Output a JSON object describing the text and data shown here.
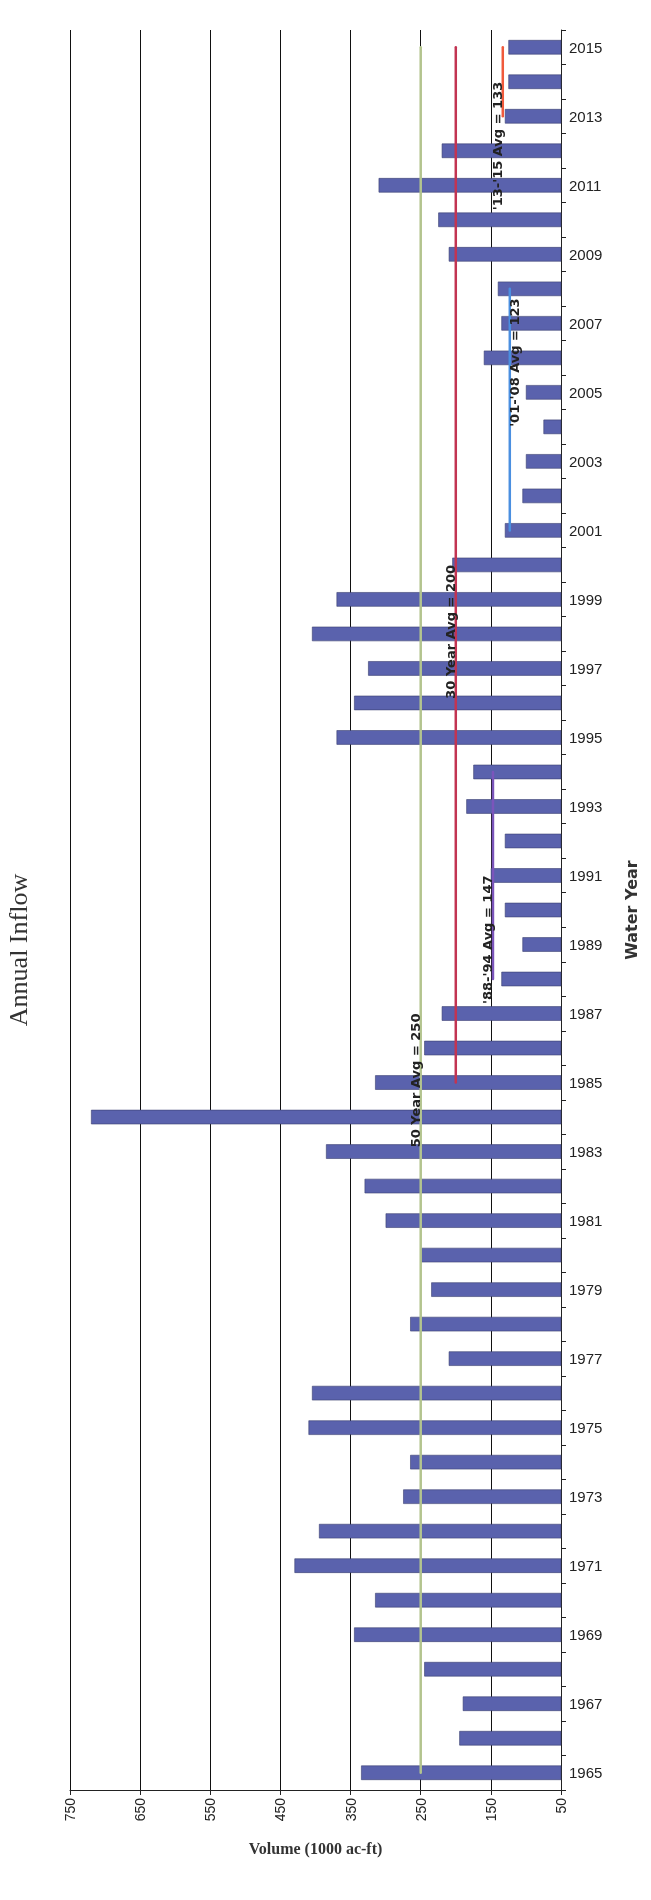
{
  "chart_data": {
    "type": "bar",
    "orientation": "horizontal",
    "title": "Annual Inflow",
    "xlabel": "Volume (1000 ac-ft)",
    "ylabel": "Water Year",
    "categories": [
      "2015",
      null,
      "2013",
      null,
      "2011",
      null,
      "2009",
      null,
      "2007",
      null,
      "2005",
      null,
      "2003",
      null,
      "2001",
      null,
      "1999",
      null,
      "1997",
      null,
      "1995",
      null,
      "1993",
      null,
      "1991",
      null,
      "1989",
      null,
      "1987",
      null,
      "1985",
      null,
      "1983",
      null,
      "1981",
      null,
      "1979",
      null,
      "1977",
      null,
      "1975",
      null,
      "1973",
      null,
      "1971",
      null,
      "1969",
      null,
      "1967",
      null,
      "1965"
    ],
    "xlim": [
      750,
      50
    ],
    "xticks": [
      750,
      650,
      550,
      450,
      350,
      250,
      150,
      50
    ],
    "grid": "x",
    "legend": false,
    "marker": "none",
    "line_style": "solid",
    "series": [
      {
        "color": "#5a62ad",
        "values": [
          125,
          125,
          130,
          220,
          310,
          225,
          210,
          140,
          135,
          160,
          100,
          75,
          100,
          105,
          130,
          205,
          370,
          405,
          325,
          345,
          370,
          175,
          185,
          130,
          150,
          130,
          105,
          135,
          220,
          245,
          315,
          720,
          385,
          330,
          300,
          250,
          235,
          265,
          210,
          405,
          410,
          265,
          275,
          395,
          430,
          315,
          345,
          245,
          190,
          195,
          335
        ]
      },
      {
        "type": "line",
        "name": "50 Year Avg = 250",
        "color": "#b3c48e",
        "values": [
          250,
          250,
          250,
          250,
          250,
          250,
          250,
          250,
          250,
          250,
          250,
          250,
          250,
          250,
          250,
          250,
          250,
          250,
          250,
          250,
          250,
          250,
          250,
          250,
          250,
          250,
          250,
          250,
          250,
          250,
          250,
          250,
          250,
          250,
          250,
          250,
          250,
          250,
          250,
          250,
          250,
          250,
          250,
          250,
          250,
          250,
          250,
          250,
          250,
          250,
          250
        ]
      },
      {
        "type": "line",
        "name": "30 Year Avg = 200",
        "color": "#c23452",
        "values": [
          200,
          200,
          200,
          200,
          200,
          200,
          200,
          200,
          200,
          200,
          200,
          200,
          200,
          200,
          200,
          200,
          200,
          200,
          200,
          200,
          200,
          200,
          200,
          200,
          200,
          200,
          200,
          200,
          200,
          200,
          200,
          null,
          null,
          null,
          null,
          null,
          null,
          null,
          null,
          null,
          null,
          null,
          null,
          null,
          null,
          null,
          null,
          null,
          null,
          null,
          null
        ]
      },
      {
        "type": "line",
        "name": "'88-'94 Avg = 147",
        "color": "#7b55bb",
        "values": [
          null,
          null,
          null,
          null,
          null,
          null,
          null,
          null,
          null,
          null,
          null,
          null,
          null,
          null,
          null,
          null,
          null,
          null,
          null,
          null,
          null,
          147,
          147,
          147,
          147,
          147,
          147,
          147,
          null,
          null,
          null,
          null,
          null,
          null,
          null,
          null,
          null,
          null,
          null,
          null,
          null,
          null,
          null,
          null,
          null,
          null,
          null,
          null,
          null,
          null,
          null
        ]
      },
      {
        "type": "line",
        "name": "'01-'08 Avg = 123",
        "color": "#4a8fe0",
        "values": [
          null,
          null,
          null,
          null,
          null,
          null,
          null,
          123,
          123,
          123,
          123,
          123,
          123,
          123,
          123,
          null,
          null,
          null,
          null,
          null,
          null,
          null,
          null,
          null,
          null,
          null,
          null,
          null,
          null,
          null,
          null,
          null,
          null,
          null,
          null,
          null,
          null,
          null,
          null,
          null,
          null,
          null,
          null,
          null,
          null,
          null,
          null,
          null,
          null,
          null,
          null
        ]
      },
      {
        "type": "line",
        "name": "'13-'15 Avg = 133",
        "color": "#f05a3c",
        "values": [
          133,
          133,
          133,
          null,
          null,
          null,
          null,
          null,
          null,
          null,
          null,
          null,
          null,
          null,
          null,
          null,
          null,
          null,
          null,
          null,
          null,
          null,
          null,
          null,
          null,
          null,
          null,
          null,
          null,
          null,
          null,
          null,
          null,
          null,
          null,
          null,
          null,
          null,
          null,
          null,
          null,
          null,
          null,
          null,
          null,
          null,
          null,
          null,
          null,
          null,
          null
        ]
      }
    ]
  }
}
